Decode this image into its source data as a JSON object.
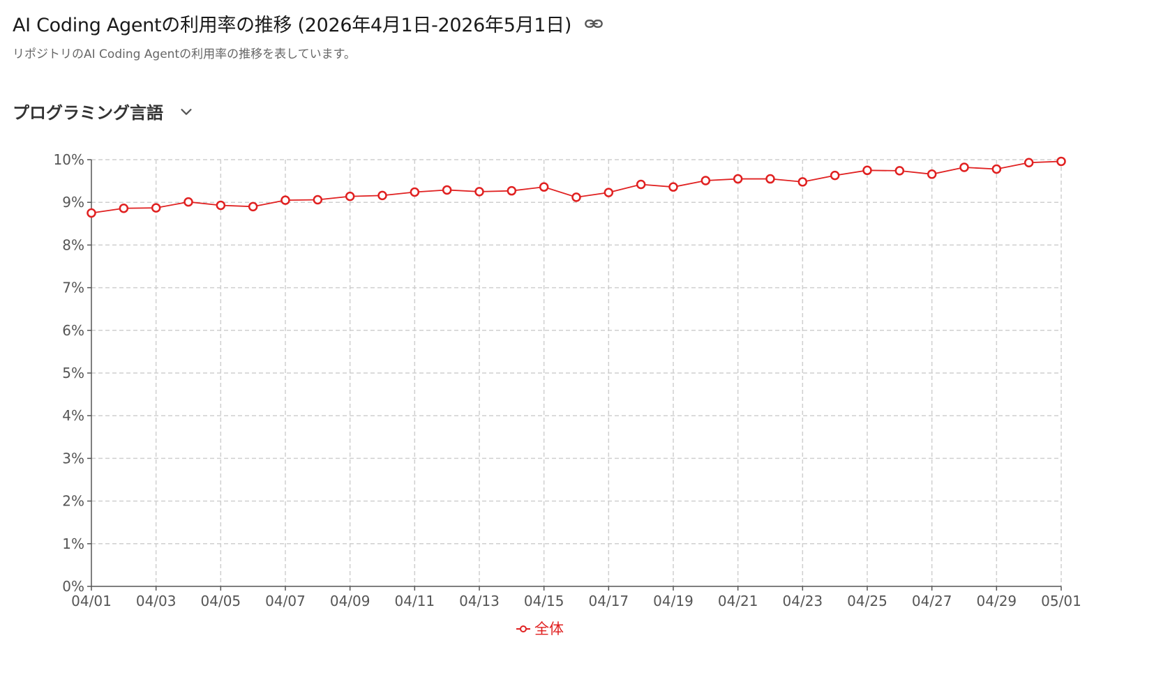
{
  "header": {
    "title": "AI Coding Agentの利用率の推移 (2026年4月1日-2026年5月1日)",
    "subtitle": "リポジトリのAI Coding Agentの利用率の推移を表しています。",
    "link_icon": "link-icon"
  },
  "selector": {
    "label": "プログラミング言語",
    "icon": "chevron-down-icon"
  },
  "chart_data": {
    "type": "line",
    "x": [
      "04/01",
      "04/02",
      "04/03",
      "04/04",
      "04/05",
      "04/06",
      "04/07",
      "04/08",
      "04/09",
      "04/10",
      "04/11",
      "04/12",
      "04/13",
      "04/14",
      "04/15",
      "04/16",
      "04/17",
      "04/18",
      "04/19",
      "04/20",
      "04/21",
      "04/22",
      "04/23",
      "04/24",
      "04/25",
      "04/26",
      "04/27",
      "04/28",
      "04/29",
      "04/30",
      "05/01"
    ],
    "x_tick_labels": [
      "04/01",
      "04/03",
      "04/05",
      "04/07",
      "04/09",
      "04/11",
      "04/13",
      "04/15",
      "04/17",
      "04/19",
      "04/21",
      "04/23",
      "04/25",
      "04/27",
      "04/29",
      "05/01"
    ],
    "series": [
      {
        "name": "全体",
        "color": "#e02020",
        "values": [
          8.75,
          8.86,
          8.87,
          9.01,
          8.93,
          8.9,
          9.05,
          9.06,
          9.14,
          9.16,
          9.24,
          9.29,
          9.25,
          9.27,
          9.36,
          9.12,
          9.23,
          9.42,
          9.36,
          9.51,
          9.55,
          9.55,
          9.48,
          9.63,
          9.75,
          9.74,
          9.66,
          9.82,
          9.78,
          9.93,
          9.96
        ]
      }
    ],
    "y_ticks": [
      "0%",
      "1%",
      "2%",
      "3%",
      "4%",
      "5%",
      "6%",
      "7%",
      "8%",
      "9%",
      "10%"
    ],
    "ylim": [
      0,
      10
    ],
    "grid": true,
    "legend_position": "bottom-center",
    "xlabel": "",
    "ylabel": ""
  }
}
